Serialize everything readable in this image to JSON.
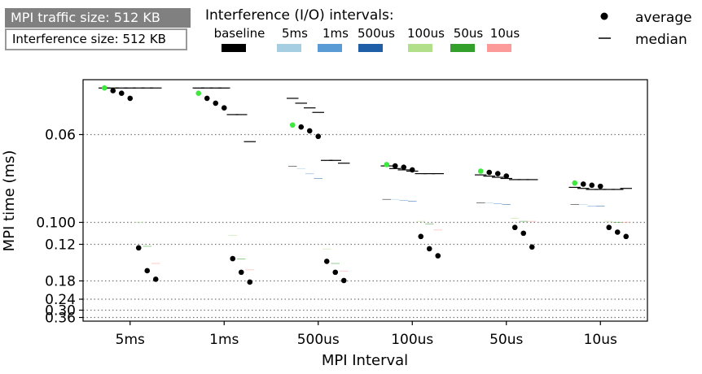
{
  "info": {
    "traffic_label": "MPI traffic size: 512 KB",
    "interference_label": "Interference size: 512 KB"
  },
  "legend": {
    "title": "Interference (I/O) intervals:",
    "average_label": "average",
    "median_label": "median",
    "placement": "top"
  },
  "chart_data": {
    "type": "bar",
    "xlabel": "MPI Interval",
    "ylabel": "MPI time (ms)",
    "yscale": "reciprocal",
    "ylim": [
      0.048,
      0.4
    ],
    "yticks": [
      0.06,
      0.1,
      0.12,
      0.18,
      0.24,
      0.3,
      0.36
    ],
    "ytick_labels": [
      "0.06",
      "0.100",
      "0.12",
      "0.18",
      "0.24",
      "0.30",
      "0.36"
    ],
    "grid": "y-dotted",
    "categories": [
      "5ms",
      "1ms",
      "500us",
      "100us",
      "50us",
      "10us"
    ],
    "series": [
      {
        "name": "baseline",
        "color": "#000000",
        "bottom": [
          0.0495,
          0.0495,
          0.0505,
          0.0505,
          0.05,
          0.05
        ],
        "top": [
          0.0495,
          0.0495,
          0.07,
          0.085,
          0.087,
          0.088
        ],
        "average": [
          0.0495,
          0.0505,
          0.0575,
          0.0695,
          0.072,
          0.077
        ],
        "median": [
          0.0495,
          0.0495,
          0.0515,
          0.07,
          0.0735,
          0.079
        ]
      },
      {
        "name": "5ms",
        "color": "#a6cee3",
        "bottom": [
          0.0495,
          0.0495,
          0.05,
          0.0505,
          0.0505,
          0.05
        ],
        "top": [
          0.0495,
          0.0495,
          0.071,
          0.085,
          0.087,
          0.088
        ],
        "average": [
          0.05,
          0.0515,
          0.058,
          0.07,
          0.0725,
          0.0775
        ],
        "median": [
          0.0495,
          0.0495,
          0.0525,
          0.071,
          0.074,
          0.0795
        ]
      },
      {
        "name": "1ms",
        "color": "#5b9bd5",
        "bottom": [
          0.0495,
          0.0495,
          0.05,
          0.0505,
          0.0505,
          0.0505
        ],
        "top": [
          0.0495,
          0.0495,
          0.073,
          0.0855,
          0.0875,
          0.089
        ],
        "average": [
          0.0505,
          0.0525,
          0.059,
          0.0705,
          0.073,
          0.078
        ],
        "median": [
          0.0495,
          0.0495,
          0.0535,
          0.0715,
          0.0745,
          0.08
        ]
      },
      {
        "name": "500us",
        "color": "#1f5fa8",
        "bottom": [
          0.0495,
          0.0495,
          0.05,
          0.0505,
          0.0505,
          0.0575
        ],
        "top": [
          0.0495,
          0.0495,
          0.075,
          0.086,
          0.088,
          0.089
        ],
        "average": [
          0.0515,
          0.0535,
          0.0605,
          0.0715,
          0.074,
          0.0785
        ],
        "median": [
          0.0495,
          0.0495,
          0.0545,
          0.072,
          0.075,
          0.08
        ]
      },
      {
        "name": "100us",
        "color": "#b2df8a",
        "bottom": [
          0.0495,
          0.05,
          0.05,
          0.0505,
          0.0505,
          0.05
        ],
        "top": [
          0.1,
          0.111,
          0.125,
          0.099,
          0.097,
          0.099
        ],
        "average": [
          0.124,
          0.138,
          0.142,
          0.112,
          0.104,
          0.104
        ],
        "median": [
          0.0495,
          0.055,
          0.068,
          0.073,
          0.0755,
          0.08
        ]
      },
      {
        "name": "50us",
        "color": "#33a02c",
        "bottom": [
          0.0495,
          0.05,
          0.05,
          0.0505,
          0.0505,
          0.05
        ],
        "top": [
          0.122,
          0.138,
          0.145,
          0.101,
          0.099,
          0.1
        ],
        "average": [
          0.158,
          0.161,
          0.161,
          0.125,
          0.109,
          0.108
        ],
        "median": [
          0.0495,
          0.055,
          0.068,
          0.073,
          0.0755,
          0.08
        ]
      },
      {
        "name": "10us",
        "color": "#fb9a99",
        "bottom": [
          0.0495,
          0.05,
          0.05,
          0.0505,
          0.0505,
          0.05
        ],
        "top": [
          0.145,
          0.156,
          0.158,
          0.106,
          0.099,
          0.1
        ],
        "average": [
          0.176,
          0.183,
          0.179,
          0.134,
          0.123,
          0.112
        ],
        "median": [
          0.0495,
          0.062,
          0.069,
          0.073,
          0.0755,
          0.0795
        ]
      }
    ]
  }
}
